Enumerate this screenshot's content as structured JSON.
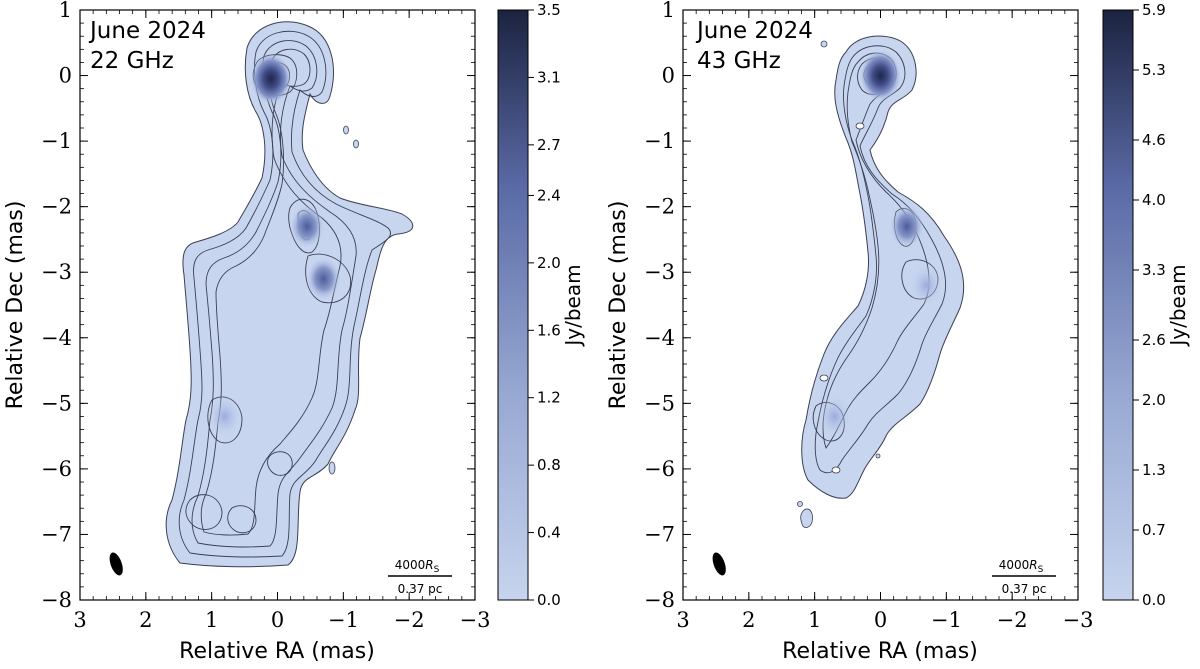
{
  "chart_data": [
    {
      "type": "heatmap",
      "annotation": [
        "June 2024",
        "22 GHz"
      ],
      "xlabel": "Relative RA (mas)",
      "ylabel": "Relative Dec (mas)",
      "xlim": [
        3,
        -3
      ],
      "ylim": [
        -8,
        1
      ],
      "x_ticks": [
        3,
        2,
        1,
        0,
        -1,
        -2,
        -3
      ],
      "x_tick_labels": [
        "3",
        "2",
        "1",
        "0",
        "−1",
        "−2",
        "−3"
      ],
      "y_ticks": [
        1,
        0,
        -1,
        -2,
        -3,
        -4,
        -5,
        -6,
        -7,
        -8
      ],
      "y_tick_labels": [
        "1",
        "0",
        "−1",
        "−2",
        "−3",
        "−4",
        "−5",
        "−6",
        "−7",
        "−8"
      ],
      "colorbar": {
        "label": "Jy/beam",
        "range": [
          0.0,
          3.5
        ],
        "ticks": [
          0.0,
          0.4,
          0.8,
          1.2,
          1.6,
          2.0,
          2.4,
          2.7,
          3.1,
          3.5
        ],
        "tick_labels": [
          "0.0",
          "0.4",
          "0.8",
          "1.2",
          "1.6",
          "2.0",
          "2.4",
          "2.7",
          "3.1",
          "3.5"
        ]
      },
      "scale_bar": {
        "upper": "4000",
        "upper_sub": "S",
        "lower": "0.37 pc"
      },
      "beam": {
        "x": 2.45,
        "y": -7.45
      },
      "peaks": [
        {
          "x": 0.1,
          "y": -0.05,
          "level": 3.5
        },
        {
          "x": -0.45,
          "y": -2.3,
          "level": 1.9
        },
        {
          "x": -0.7,
          "y": -3.1,
          "level": 1.1
        },
        {
          "x": 0.8,
          "y": -5.2,
          "level": 0.8
        }
      ]
    },
    {
      "type": "heatmap",
      "annotation": [
        "June 2024",
        "43 GHz"
      ],
      "xlabel": "Relative RA (mas)",
      "ylabel": "Relative Dec (mas)",
      "xlim": [
        3,
        -3
      ],
      "ylim": [
        -8,
        1
      ],
      "x_ticks": [
        3,
        2,
        1,
        0,
        -1,
        -2,
        -3
      ],
      "x_tick_labels": [
        "3",
        "2",
        "1",
        "0",
        "−1",
        "−2",
        "−3"
      ],
      "y_ticks": [
        1,
        0,
        -1,
        -2,
        -3,
        -4,
        -5,
        -6,
        -7,
        -8
      ],
      "y_tick_labels": [
        "1",
        "0",
        "−1",
        "−2",
        "−3",
        "−4",
        "−5",
        "−6",
        "−7",
        "−8"
      ],
      "colorbar": {
        "label": "Jy/beam",
        "range": [
          0.0,
          5.9
        ],
        "ticks": [
          0.0,
          0.7,
          1.3,
          2.0,
          2.6,
          3.3,
          4.0,
          4.6,
          5.3,
          5.9
        ],
        "tick_labels": [
          "0.0",
          "0.7",
          "1.3",
          "2.0",
          "2.6",
          "3.3",
          "4.0",
          "4.6",
          "5.3",
          "5.9"
        ]
      },
      "scale_bar": {
        "upper": "4000",
        "upper_sub": "S",
        "lower": "0.37 pc"
      },
      "beam": {
        "x": 2.45,
        "y": -7.45
      },
      "peaks": [
        {
          "x": 0.0,
          "y": 0.0,
          "level": 5.9
        },
        {
          "x": -0.4,
          "y": -2.3,
          "level": 1.9
        },
        {
          "x": -0.7,
          "y": -3.2,
          "level": 1.2
        },
        {
          "x": 0.7,
          "y": -5.2,
          "level": 0.9
        }
      ]
    }
  ]
}
